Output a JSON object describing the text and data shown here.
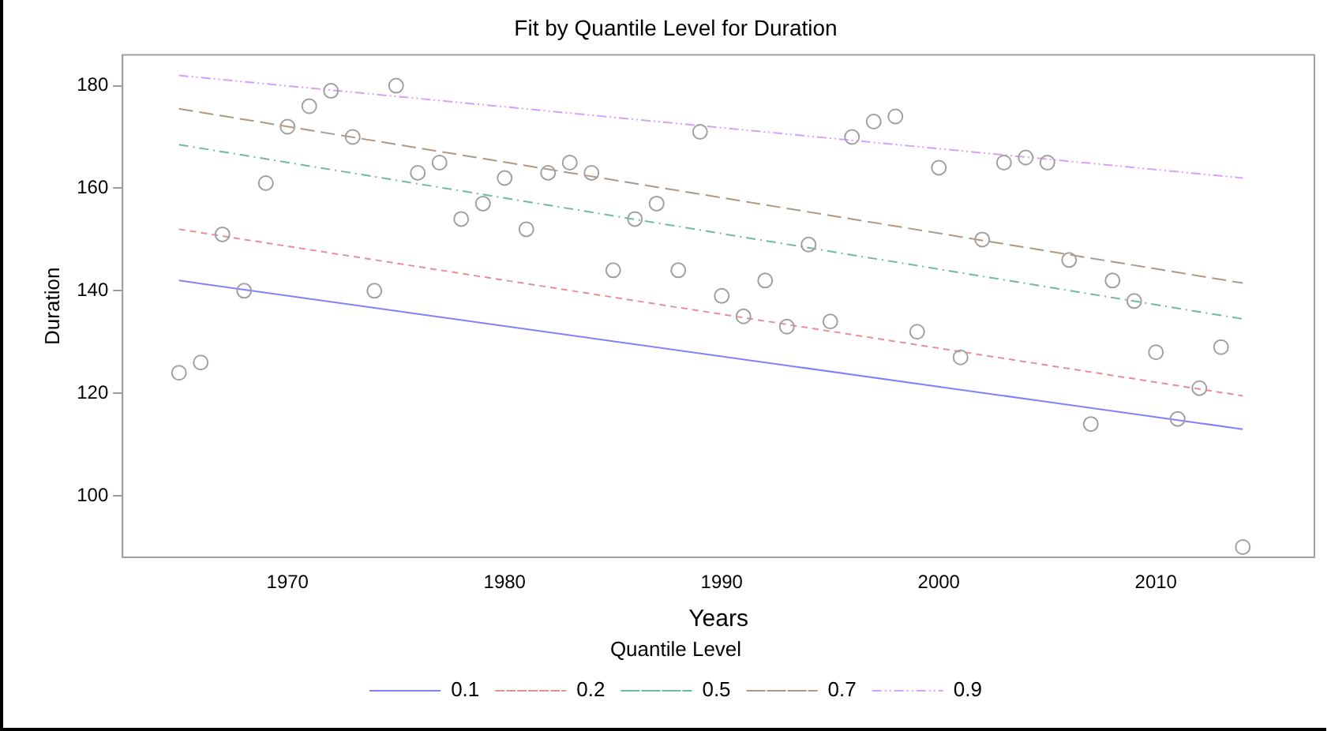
{
  "chart_data": {
    "type": "scatter",
    "title": "Fit by Quantile Level for Duration",
    "xlabel": "Years",
    "ylabel": "Duration",
    "legend_title": "Quantile Level",
    "legend": "bottom",
    "grid": false,
    "marker": "circle",
    "xlim": [
      1962.4,
      2017.3
    ],
    "xticks": [
      1970,
      1980,
      1990,
      2000,
      2010
    ],
    "ylim": [
      88,
      186
    ],
    "yticks": [
      100,
      120,
      140,
      160,
      180
    ],
    "series": [
      {
        "type": "scatter",
        "color": "#a0a0a0",
        "x": [
          1965,
          1966,
          1967,
          1968,
          1969,
          1970,
          1971,
          1972,
          1973,
          1974,
          1975,
          1976,
          1977,
          1978,
          1979,
          1980,
          1981,
          1982,
          1983,
          1984,
          1985,
          1986,
          1987,
          1988,
          1989,
          1990,
          1991,
          1992,
          1993,
          1994,
          1995,
          1996,
          1997,
          1998,
          1999,
          2000,
          2001,
          2002,
          2003,
          2004,
          2005,
          2006,
          2007,
          2008,
          2009,
          2010,
          2011,
          2012,
          2013,
          2014
        ],
        "values": [
          124,
          126,
          151,
          140,
          161,
          172,
          176,
          179,
          170,
          140,
          180,
          163,
          165,
          154,
          157,
          162,
          152,
          163,
          165,
          163,
          144,
          154,
          157,
          144,
          171,
          139,
          135,
          142,
          133,
          149,
          134,
          170,
          173,
          174,
          132,
          164,
          127,
          150,
          165,
          166,
          165,
          146,
          114,
          142,
          138,
          128,
          115,
          121,
          129,
          90
        ]
      },
      {
        "type": "line",
        "name": "0.1",
        "color": "#8080ff",
        "line_style": "solid",
        "marker": "none",
        "x": [
          1965,
          2014
        ],
        "values": [
          142,
          113
        ]
      },
      {
        "type": "line",
        "name": "0.2",
        "color": "#e89090",
        "line_style": "dashed",
        "marker": "none",
        "x": [
          1965,
          2014
        ],
        "values": [
          152,
          119.5
        ]
      },
      {
        "type": "line",
        "name": "0.5",
        "color": "#70b8a8",
        "line_style": "dashdot",
        "marker": "none",
        "x": [
          1965,
          2014
        ],
        "values": [
          168.5,
          134.5
        ]
      },
      {
        "type": "line",
        "name": "0.7",
        "color": "#b09884",
        "line_style": "longdash",
        "marker": "none",
        "x": [
          1965,
          2014
        ],
        "values": [
          175.5,
          141.5
        ]
      },
      {
        "type": "line",
        "name": "0.9",
        "color": "#d8a0f8",
        "line_style": "dashdotdot",
        "marker": "none",
        "x": [
          1965,
          2014
        ],
        "values": [
          182,
          162
        ]
      }
    ]
  }
}
